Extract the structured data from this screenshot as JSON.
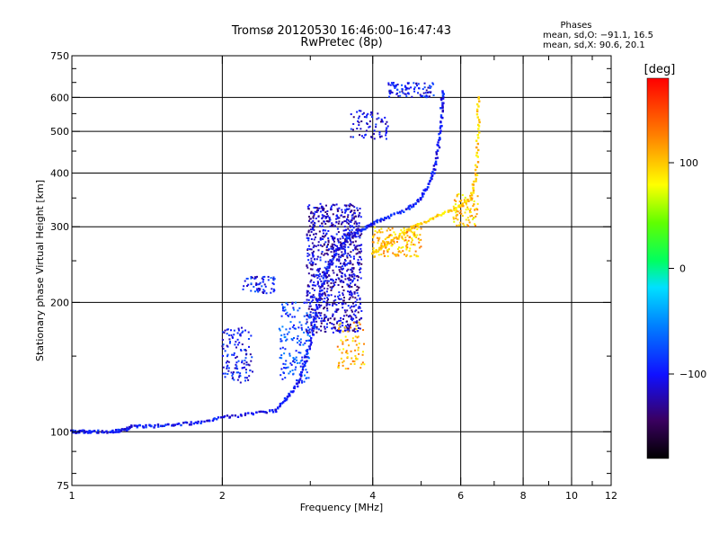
{
  "chart_data": {
    "type": "scatter",
    "title": "Tromsø 20120530 16:46:00–16:47:43",
    "subtitle": "RwPretec (8p)",
    "xlabel": "Frequency [MHz]",
    "ylabel": "Stationary phase Virtual Height [km]",
    "x_scale": "log",
    "y_scale": "log",
    "xlim": [
      1,
      12
    ],
    "ylim": [
      75,
      750
    ],
    "grid": true,
    "x_ticks": [
      1,
      2,
      4,
      6,
      8,
      10,
      12
    ],
    "x_tick_labels": [
      "1",
      "2",
      "4",
      "6",
      "8",
      "10",
      "12"
    ],
    "x_minor_ticks": [
      3,
      5,
      7,
      9,
      11
    ],
    "y_ticks": [
      75,
      100,
      200,
      300,
      400,
      500,
      600,
      750
    ],
    "y_tick_labels": [
      "75",
      "100",
      "200",
      "300",
      "400",
      "500",
      "600",
      "750"
    ],
    "y_minor_ticks": [
      80,
      90,
      150,
      250,
      350,
      450,
      550,
      650,
      700
    ],
    "phases_info": {
      "heading": "Phases",
      "line1": "mean, sd,O: −91.1, 16.5",
      "line2": "mean, sd,X:  90.6, 20.1"
    },
    "colorbar": {
      "label": "[deg]",
      "range": [
        -180,
        180
      ],
      "tick_values": [
        100,
        0,
        -100
      ],
      "tick_labels": [
        "100",
        "0",
        "−100"
      ]
    },
    "series": [
      {
        "name": "O",
        "color_value": -100,
        "points": [
          [
            1.0,
            100
          ],
          [
            1.05,
            100
          ],
          [
            1.1,
            100
          ],
          [
            1.2,
            100
          ],
          [
            1.28,
            101
          ],
          [
            1.32,
            103
          ],
          [
            1.45,
            103
          ],
          [
            1.6,
            104
          ],
          [
            1.8,
            105
          ],
          [
            2.0,
            108
          ],
          [
            2.3,
            110
          ],
          [
            2.55,
            112
          ],
          [
            2.7,
            120
          ],
          [
            2.85,
            130
          ],
          [
            2.95,
            150
          ],
          [
            3.05,
            175
          ],
          [
            3.1,
            200
          ],
          [
            3.2,
            230
          ],
          [
            3.3,
            250
          ],
          [
            3.45,
            270
          ],
          [
            3.6,
            285
          ],
          [
            3.8,
            295
          ],
          [
            4.0,
            305
          ],
          [
            4.3,
            315
          ],
          [
            4.7,
            330
          ],
          [
            5.0,
            350
          ],
          [
            5.2,
            380
          ],
          [
            5.35,
            420
          ],
          [
            5.45,
            480
          ],
          [
            5.5,
            560
          ],
          [
            5.52,
            620
          ]
        ]
      },
      {
        "name": "X",
        "color_value": 100,
        "points": [
          [
            4.0,
            260
          ],
          [
            4.3,
            275
          ],
          [
            4.7,
            295
          ],
          [
            5.0,
            305
          ],
          [
            5.5,
            320
          ],
          [
            6.0,
            335
          ],
          [
            6.3,
            350
          ],
          [
            6.45,
            400
          ],
          [
            6.5,
            500
          ],
          [
            6.52,
            600
          ]
        ]
      }
    ]
  }
}
